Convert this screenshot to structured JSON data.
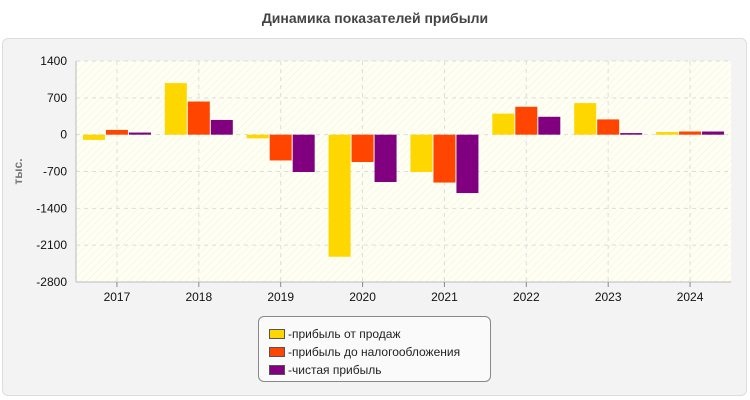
{
  "title": "Динамика показателей прибыли",
  "legend_prefix": "- ",
  "chart_data": {
    "type": "bar",
    "title": "Динамика показателей прибыли",
    "xlabel": "",
    "ylabel": "тыс.",
    "ylim": [
      -2800,
      1400
    ],
    "yticks": [
      1400,
      700,
      0,
      -700,
      -1400,
      -2100,
      -2800
    ],
    "grid": true,
    "legend_position": "bottom",
    "categories": [
      "2017",
      "2018",
      "2019",
      "2020",
      "2021",
      "2022",
      "2023",
      "2024"
    ],
    "series": [
      {
        "name": "прибыль от продаж",
        "color": "#FFD700",
        "values": [
          -100,
          980,
          -70,
          -2320,
          -710,
          400,
          600,
          50
        ]
      },
      {
        "name": "прибыль до налогообложения",
        "color": "#FF4500",
        "values": [
          90,
          630,
          -490,
          -520,
          -910,
          530,
          290,
          60
        ]
      },
      {
        "name": "чистая прибыль",
        "color": "#800080",
        "values": [
          40,
          280,
          -710,
          -900,
          -1110,
          340,
          30,
          60
        ]
      }
    ]
  }
}
